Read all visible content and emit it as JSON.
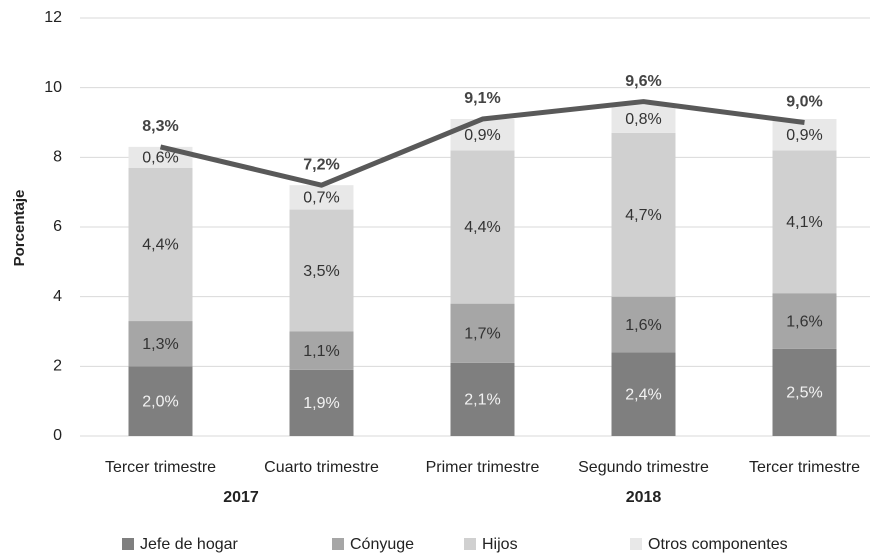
{
  "chart_data": {
    "type": "stacked_bar_line",
    "ylabel": "Porcentaje",
    "categories": [
      "Tercer trimestre",
      "Cuarto trimestre",
      "Primer trimestre",
      "Segundo trimestre",
      "Tercer trimestre"
    ],
    "groups": [
      {
        "label": "2017",
        "span": 2
      },
      {
        "label": "2018",
        "span": 3
      }
    ],
    "series": [
      {
        "name": "Jefe de hogar",
        "color": "#7f7f7f",
        "values": [
          2.0,
          1.9,
          2.1,
          2.4,
          2.5
        ],
        "value_labels": [
          "2,0%",
          "1,9%",
          "2,1%",
          "2,4%",
          "2,5%"
        ]
      },
      {
        "name": "Cónyuge",
        "color": "#a6a6a6",
        "values": [
          1.3,
          1.1,
          1.7,
          1.6,
          1.6
        ],
        "value_labels": [
          "1,3%",
          "1,1%",
          "1,7%",
          "1,6%",
          "1,6%"
        ]
      },
      {
        "name": "Hijos",
        "color": "#d0d0d0",
        "values": [
          4.4,
          3.5,
          4.4,
          4.7,
          4.1
        ],
        "value_labels": [
          "4,4%",
          "3,5%",
          "4,4%",
          "4,7%",
          "4,1%"
        ]
      },
      {
        "name": "Otros componentes",
        "color": "#e8e8e8",
        "values": [
          0.6,
          0.7,
          0.9,
          0.8,
          0.9
        ],
        "value_labels": [
          "0,6%",
          "0,7%",
          "0,9%",
          "0,8%",
          "0,9%"
        ]
      }
    ],
    "total": {
      "color": "#595959",
      "values": [
        8.3,
        7.2,
        9.1,
        9.6,
        9.0
      ],
      "value_labels": [
        "8,3%",
        "7,2%",
        "9,1%",
        "9,6%",
        "9,0%"
      ]
    },
    "ylim": [
      0,
      12
    ],
    "yticks": [
      0,
      2,
      4,
      6,
      8,
      10,
      12
    ],
    "grid": true,
    "legend": "bottom"
  }
}
